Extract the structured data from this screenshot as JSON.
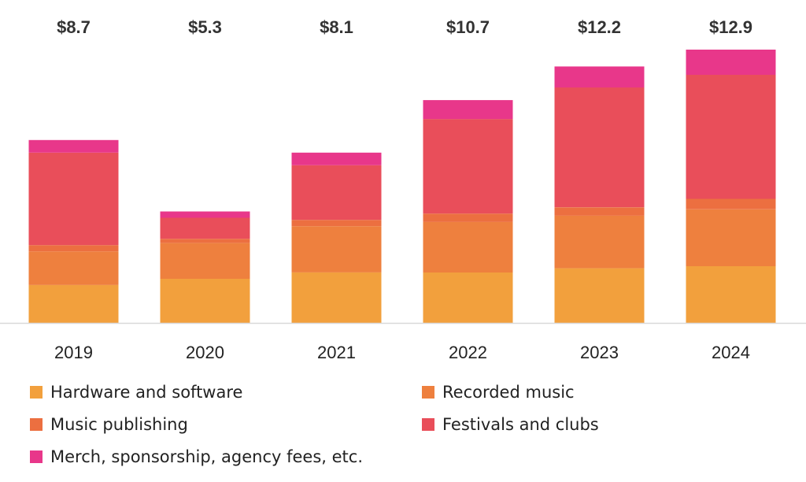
{
  "chart_data": {
    "type": "bar",
    "stacked": true,
    "categories": [
      "2019",
      "2020",
      "2021",
      "2022",
      "2023",
      "2024"
    ],
    "totals": [
      "$8.7",
      "$5.3",
      "$8.1",
      "$10.7",
      "$12.2",
      "$12.9"
    ],
    "series": [
      {
        "name": "Hardware and software",
        "color": "#F2A03D",
        "values": [
          1.8,
          2.1,
          2.4,
          2.4,
          2.6,
          2.7
        ]
      },
      {
        "name": "Recorded music",
        "color": "#EE803E",
        "values": [
          1.6,
          1.7,
          2.2,
          2.4,
          2.5,
          2.7
        ]
      },
      {
        "name": "Music publishing",
        "color": "#EC6F40",
        "values": [
          0.3,
          0.2,
          0.3,
          0.4,
          0.4,
          0.5
        ]
      },
      {
        "name": "Festivals and clubs",
        "color": "#E94E5A",
        "values": [
          4.4,
          1.0,
          2.6,
          4.5,
          5.7,
          5.9
        ]
      },
      {
        "name": "Merch, sponsorship, agency fees, etc.",
        "color": "#E8378A",
        "values": [
          0.6,
          0.3,
          0.6,
          0.9,
          1.0,
          1.2
        ]
      }
    ],
    "ylim": [
      0,
      13.15
    ],
    "title": "",
    "xlabel": "",
    "ylabel": "",
    "legend_position": "bottom"
  },
  "legend": {
    "items": [
      {
        "label": "Hardware and software",
        "color": "#F2A03D"
      },
      {
        "label": "Recorded music",
        "color": "#EE803E"
      },
      {
        "label": "Music publishing",
        "color": "#EC6F40"
      },
      {
        "label": "Festivals and clubs",
        "color": "#E94E5A"
      },
      {
        "label": "Merch, sponsorship, agency fees, etc.",
        "color": "#E8378A"
      }
    ]
  },
  "colors": {
    "axis": "#D9D9D9",
    "total_text": "#333333",
    "tick_text": "#222222"
  }
}
